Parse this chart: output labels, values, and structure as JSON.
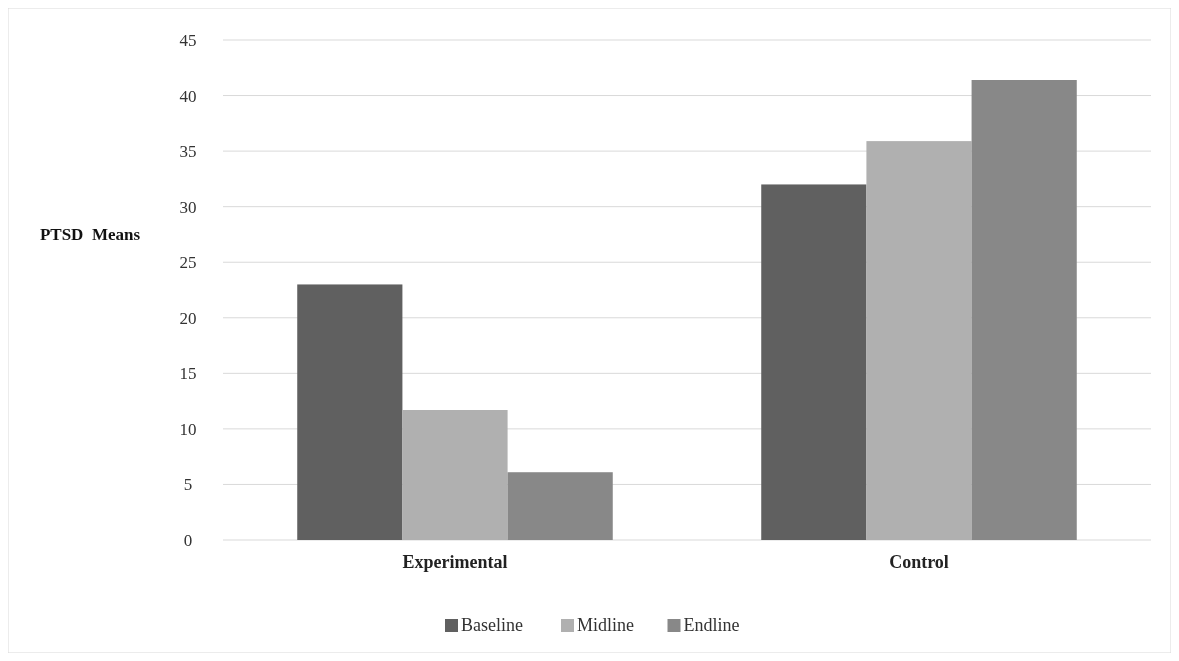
{
  "chart_data": {
    "type": "bar",
    "ylabel": "PTSD  Means",
    "categories": [
      "Experimental",
      "Control"
    ],
    "series": [
      {
        "name": "Baseline",
        "color": "#606060",
        "values": [
          23.0,
          32.0
        ]
      },
      {
        "name": "Midline",
        "color": "#b0b0b0",
        "values": [
          11.7,
          35.9
        ]
      },
      {
        "name": "Endline",
        "color": "#888888",
        "values": [
          6.1,
          41.4
        ]
      }
    ],
    "ylim": [
      0,
      45
    ],
    "yticks": [
      0,
      5,
      10,
      15,
      20,
      25,
      30,
      35,
      40,
      45
    ],
    "grid": "y",
    "legend": "bottom"
  }
}
